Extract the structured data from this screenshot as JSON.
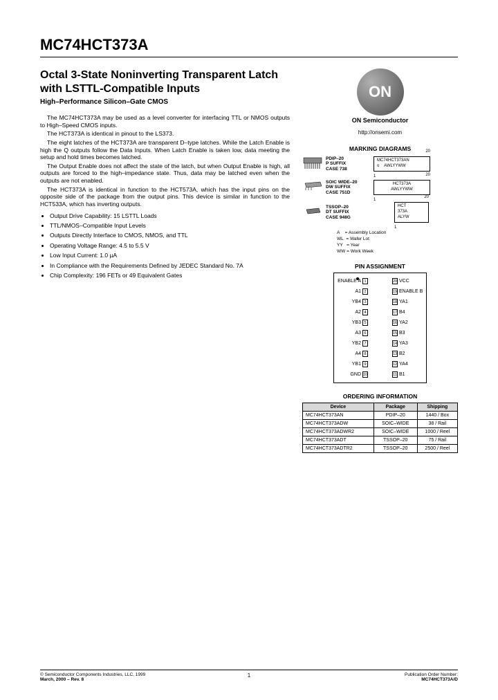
{
  "part_number": "MC74HCT373A",
  "title": "Octal 3-State Noninverting Transparent Latch with LSTTL-Compatible Inputs",
  "subtitle": "High–Performance Silicon–Gate CMOS",
  "paragraphs": [
    "The MC74HCT373A may be used as a level converter for interfacing TTL or NMOS outputs to High–Speed CMOS inputs.",
    "The HCT373A is identical in pinout to the LS373.",
    "The eight latches of the HCT373A are transparent D–type latches. While the Latch Enable is high the Q outputs follow the Data Inputs. When Latch Enable is taken low, data meeting the setup and hold times becomes latched.",
    "The Output Enable does not affect the state of the latch, but when Output Enable is high, all outputs are forced to the high–impedance state. Thus, data may be latched even when the outputs are not enabled.",
    "The HCT373A is identical in function to the HCT573A, which has the input pins on the opposite side of the package from the output pins. This device is similar in function to the HCT533A, which has inverting outputs."
  ],
  "bullets": [
    "Output Drive Capability: 15 LSTTL Loads",
    "TTL/NMOS–Compatible Input Levels",
    "Outputs Directly Interface to CMOS, NMOS, and TTL",
    "Operating Voltage Range: 4.5 to 5.5 V",
    "Low Input Current: 1.0 µA",
    "In Compliance with the Requirements Defined by JEDEC Standard No. 7A",
    "Chip Complexity: 196 FETs or 49 Equivalent Gates"
  ],
  "brand": {
    "logo": "ON",
    "name": "ON Semiconductor",
    "url": "http://onsemi.com"
  },
  "marking_title": "MARKING DIAGRAMS",
  "packages": [
    {
      "name": "PDIP–20",
      "suffix": "P SUFFIX",
      "case": "CASE 738",
      "mark1": "MC74HCT373AN",
      "mark2": "AWLYYWW",
      "p1": "20",
      "p2": "1"
    },
    {
      "name": "SOIC WIDE–20",
      "suffix": "DW SUFFIX",
      "case": "CASE 751D",
      "mark1": "HCT373A",
      "mark2": "AWLYYWW",
      "p1": "20",
      "p2": "1"
    },
    {
      "name": "TSSOP–20",
      "suffix": "DT SUFFIX",
      "case": "CASE 948G",
      "mark1": "HCT",
      "mark2": "373A",
      "mark3": "ALYW",
      "p1": "20",
      "p2": "1"
    }
  ],
  "legend": [
    {
      "k": "A",
      "v": "= Assembly Location"
    },
    {
      "k": "WL",
      "v": "= Wafer Lot"
    },
    {
      "k": "YY",
      "v": "= Year"
    },
    {
      "k": "WW",
      "v": "= Work Week"
    }
  ],
  "pin_title": "PIN ASSIGNMENT",
  "pins": [
    {
      "l": "ENABLE A",
      "ln": "1",
      "rn": "20",
      "r": "VCC"
    },
    {
      "l": "A1",
      "ln": "2",
      "rn": "19",
      "r": "ENABLE B"
    },
    {
      "l": "YB4",
      "ln": "3",
      "rn": "18",
      "r": "YA1"
    },
    {
      "l": "A2",
      "ln": "4",
      "rn": "17",
      "r": "B4"
    },
    {
      "l": "YB3",
      "ln": "5",
      "rn": "16",
      "r": "YA2"
    },
    {
      "l": "A3",
      "ln": "6",
      "rn": "15",
      "r": "B3"
    },
    {
      "l": "YB2",
      "ln": "7",
      "rn": "14",
      "r": "YA3"
    },
    {
      "l": "A4",
      "ln": "8",
      "rn": "13",
      "r": "B2"
    },
    {
      "l": "YB1",
      "ln": "9",
      "rn": "12",
      "r": "YA4"
    },
    {
      "l": "GND",
      "ln": "10",
      "rn": "11",
      "r": "B1"
    }
  ],
  "order_title": "ORDERING INFORMATION",
  "order_cols": [
    "Device",
    "Package",
    "Shipping"
  ],
  "order_rows": [
    [
      "MC74HCT373AN",
      "PDIP–20",
      "1440 / Box"
    ],
    [
      "MC74HCT373ADW",
      "SOIC–WIDE",
      "38 / Rail"
    ],
    [
      "MC74HCT373ADWR2",
      "SOIC–WIDE",
      "1000 / Reel"
    ],
    [
      "MC74HCT373ADT",
      "TSSOP–20",
      "75 / Rail"
    ],
    [
      "MC74HCT373ADTR2",
      "TSSOP–20",
      "2500 / Reel"
    ]
  ],
  "footer": {
    "copyright": "© Semiconductor Components Industries, LLC, 1999",
    "date": "March, 2000 – Rev. 8",
    "page": "1",
    "pub": "Publication Order Number:",
    "pubnum": "MC74HCT373A/D"
  }
}
